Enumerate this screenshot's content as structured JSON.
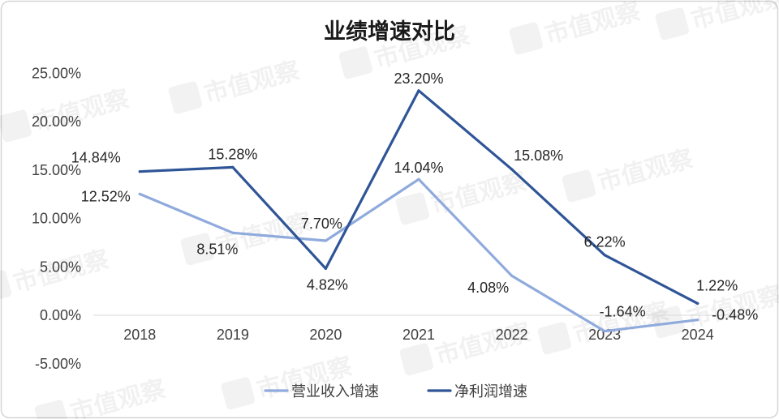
{
  "chart_data": {
    "type": "line",
    "title": "业绩增速对比",
    "categories": [
      "2018",
      "2019",
      "2020",
      "2021",
      "2022",
      "2023",
      "2024"
    ],
    "series": [
      {
        "name": "营业收入增速",
        "values": [
          12.52,
          8.51,
          7.7,
          14.04,
          4.08,
          -1.64,
          -0.48
        ],
        "labels": [
          "12.52%",
          "8.51%",
          "7.70%",
          "14.04%",
          "4.08%",
          "-1.64%",
          "-0.48%"
        ],
        "color": "#8FAADC"
      },
      {
        "name": "净利润增速",
        "values": [
          14.84,
          15.28,
          4.82,
          23.2,
          15.08,
          6.22,
          1.22
        ],
        "labels": [
          "14.84%",
          "15.28%",
          "4.82%",
          "23.20%",
          "15.08%",
          "6.22%",
          "1.22%"
        ],
        "color": "#2F5597"
      }
    ],
    "ylim": [
      -5,
      25
    ],
    "y_ticks": [
      {
        "value": 25,
        "label": "25.00%"
      },
      {
        "value": 20,
        "label": "20.00%"
      },
      {
        "value": 15,
        "label": "15.00%"
      },
      {
        "value": 10,
        "label": "10.00%"
      },
      {
        "value": 5,
        "label": "5.00%"
      },
      {
        "value": 0,
        "label": "0.00%"
      },
      {
        "value": -5,
        "label": "-5.00%"
      }
    ],
    "grid": false,
    "legend": "bottom"
  },
  "watermark": "市值观察",
  "colors": {
    "frame": "#D6D6D6",
    "axis_line": "#D9D9D9",
    "text": "#404040"
  }
}
